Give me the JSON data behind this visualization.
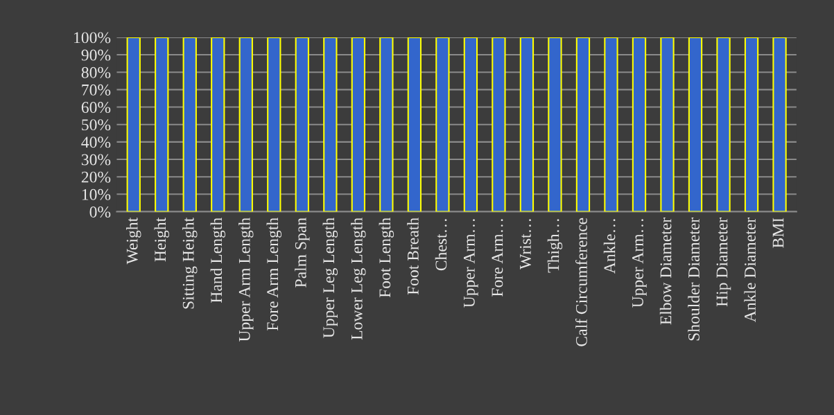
{
  "chart_data": {
    "type": "bar",
    "categories": [
      "Weight",
      "Height",
      "Sitting Height",
      "Hand Length",
      "Upper Arm Length",
      "Fore Arm Length",
      "Palm Span",
      "Upper Leg Length",
      "Lower Leg Length",
      "Foot Length",
      "Foot Breath",
      "Chest…",
      "Upper Arm…",
      "Fore Arm…",
      "Wrist…",
      "Thigh…",
      "Calf Circumference",
      "Ankle…",
      "Upper Arm…",
      "Elbow Diameter",
      "Shoulder Diameter",
      "Hip Diameter",
      "Ankle Diameter",
      "BMI"
    ],
    "series": [
      {
        "color": "#3366cc",
        "values": [
          100,
          100,
          100,
          100,
          100,
          100,
          100,
          100,
          100,
          100,
          100,
          100,
          100,
          100,
          100,
          100,
          100,
          100,
          100,
          100,
          100,
          100,
          100,
          100
        ]
      }
    ],
    "ylim": [
      0,
      100
    ],
    "yticks": [
      {
        "value": 0,
        "label": "0%"
      },
      {
        "value": 10,
        "label": "10%"
      },
      {
        "value": 20,
        "label": "20%"
      },
      {
        "value": 30,
        "label": "30%"
      },
      {
        "value": 40,
        "label": "40%"
      },
      {
        "value": 50,
        "label": "50%"
      },
      {
        "value": 60,
        "label": "60%"
      },
      {
        "value": 70,
        "label": "70%"
      },
      {
        "value": 80,
        "label": "80%"
      },
      {
        "value": 90,
        "label": "90%"
      },
      {
        "value": 100,
        "label": "100%"
      }
    ],
    "grid": "y"
  }
}
